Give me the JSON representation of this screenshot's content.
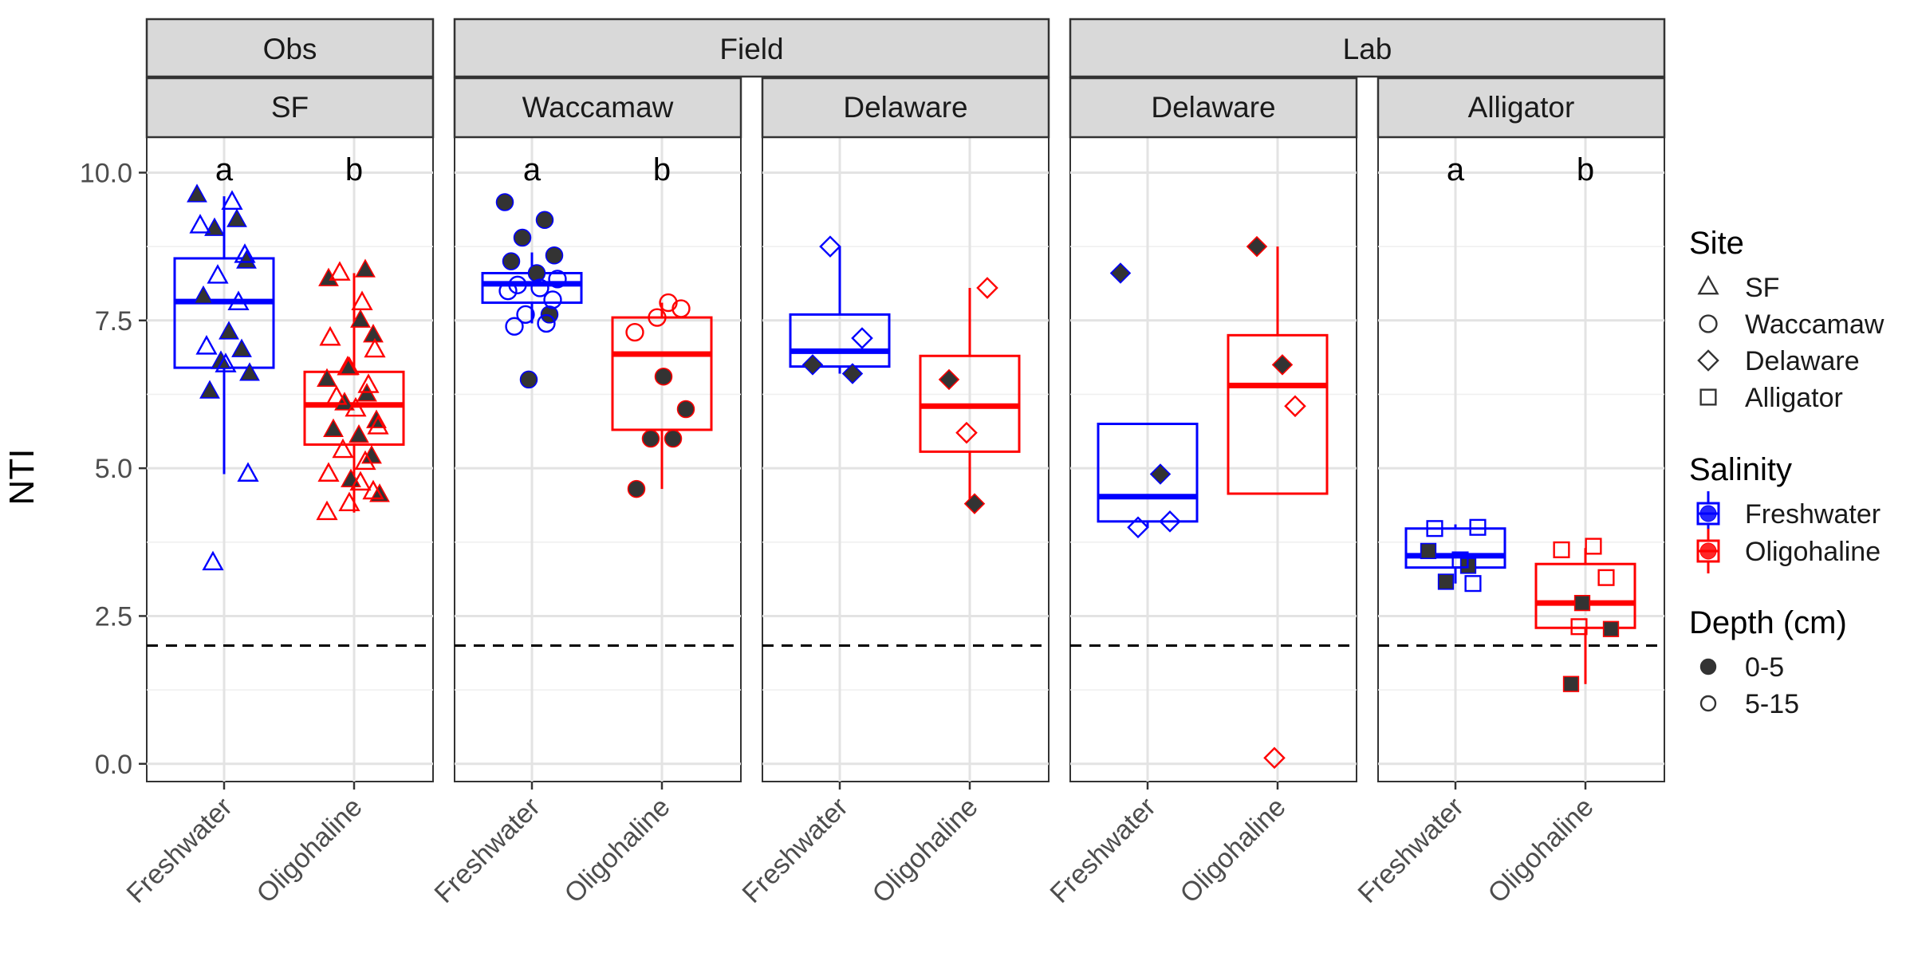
{
  "chart_data": {
    "type": "box",
    "ylabel": "NTI",
    "ylim": [
      -0.3,
      10.6
    ],
    "yticks": [
      0,
      2.5,
      5,
      7.5,
      10
    ],
    "ytick_labels": [
      "0.0",
      "2.5",
      "5.0",
      "7.5",
      "10.0"
    ],
    "reference_line": {
      "y": 2.0,
      "style": "dashed",
      "color": "#000000"
    },
    "categories": [
      "Freshwater",
      "Oligohaline"
    ],
    "colors": {
      "Freshwater": "#0000ff",
      "Oligohaline": "#ff0000"
    },
    "groups": [
      {
        "label": "Obs",
        "span": [
          0,
          0
        ]
      },
      {
        "label": "Field",
        "span": [
          1,
          2
        ]
      },
      {
        "label": "Lab",
        "span": [
          3,
          4
        ]
      }
    ],
    "panels": [
      {
        "label": "SF",
        "site_shape": "triangle",
        "annotations": [
          "a",
          "b"
        ],
        "boxes": [
          {
            "category": "Freshwater",
            "q1": 6.7,
            "median": 7.82,
            "q3": 8.55,
            "whisker_low": 4.9,
            "whisker_high": 9.6
          },
          {
            "category": "Oligohaline",
            "q1": 5.4,
            "median": 6.07,
            "q3": 6.63,
            "whisker_low": 4.25,
            "whisker_high": 8.3
          }
        ],
        "points": [
          {
            "category": "Freshwater",
            "value": 9.62,
            "depth": "0-5"
          },
          {
            "category": "Freshwater",
            "value": 9.2,
            "depth": "0-5"
          },
          {
            "category": "Freshwater",
            "value": 9.05,
            "depth": "0-5"
          },
          {
            "category": "Freshwater",
            "value": 8.5,
            "depth": "0-5"
          },
          {
            "category": "Freshwater",
            "value": 7.9,
            "depth": "0-5"
          },
          {
            "category": "Freshwater",
            "value": 7.3,
            "depth": "0-5"
          },
          {
            "category": "Freshwater",
            "value": 7.0,
            "depth": "0-5"
          },
          {
            "category": "Freshwater",
            "value": 6.8,
            "depth": "0-5"
          },
          {
            "category": "Freshwater",
            "value": 6.6,
            "depth": "0-5"
          },
          {
            "category": "Freshwater",
            "value": 6.3,
            "depth": "0-5"
          },
          {
            "category": "Freshwater",
            "value": 9.5,
            "depth": "5-15"
          },
          {
            "category": "Freshwater",
            "value": 9.1,
            "depth": "5-15"
          },
          {
            "category": "Freshwater",
            "value": 8.6,
            "depth": "5-15"
          },
          {
            "category": "Freshwater",
            "value": 8.25,
            "depth": "5-15"
          },
          {
            "category": "Freshwater",
            "value": 7.8,
            "depth": "5-15"
          },
          {
            "category": "Freshwater",
            "value": 7.05,
            "depth": "5-15"
          },
          {
            "category": "Freshwater",
            "value": 6.75,
            "depth": "5-15"
          },
          {
            "category": "Freshwater",
            "value": 4.9,
            "depth": "5-15"
          },
          {
            "category": "Freshwater",
            "value": 3.4,
            "depth": "5-15"
          },
          {
            "category": "Oligohaline",
            "value": 8.35,
            "depth": "0-5"
          },
          {
            "category": "Oligohaline",
            "value": 8.2,
            "depth": "0-5"
          },
          {
            "category": "Oligohaline",
            "value": 7.5,
            "depth": "0-5"
          },
          {
            "category": "Oligohaline",
            "value": 7.25,
            "depth": "0-5"
          },
          {
            "category": "Oligohaline",
            "value": 6.7,
            "depth": "0-5"
          },
          {
            "category": "Oligohaline",
            "value": 6.5,
            "depth": "0-5"
          },
          {
            "category": "Oligohaline",
            "value": 6.25,
            "depth": "0-5"
          },
          {
            "category": "Oligohaline",
            "value": 6.1,
            "depth": "0-5"
          },
          {
            "category": "Oligohaline",
            "value": 5.8,
            "depth": "0-5"
          },
          {
            "category": "Oligohaline",
            "value": 5.65,
            "depth": "0-5"
          },
          {
            "category": "Oligohaline",
            "value": 5.55,
            "depth": "0-5"
          },
          {
            "category": "Oligohaline",
            "value": 5.2,
            "depth": "0-5"
          },
          {
            "category": "Oligohaline",
            "value": 4.8,
            "depth": "0-5"
          },
          {
            "category": "Oligohaline",
            "value": 4.55,
            "depth": "0-5"
          },
          {
            "category": "Oligohaline",
            "value": 8.3,
            "depth": "5-15"
          },
          {
            "category": "Oligohaline",
            "value": 7.8,
            "depth": "5-15"
          },
          {
            "category": "Oligohaline",
            "value": 7.2,
            "depth": "5-15"
          },
          {
            "category": "Oligohaline",
            "value": 7.0,
            "depth": "5-15"
          },
          {
            "category": "Oligohaline",
            "value": 6.7,
            "depth": "5-15"
          },
          {
            "category": "Oligohaline",
            "value": 6.4,
            "depth": "5-15"
          },
          {
            "category": "Oligohaline",
            "value": 6.2,
            "depth": "5-15"
          },
          {
            "category": "Oligohaline",
            "value": 6.0,
            "depth": "5-15"
          },
          {
            "category": "Oligohaline",
            "value": 5.7,
            "depth": "5-15"
          },
          {
            "category": "Oligohaline",
            "value": 5.3,
            "depth": "5-15"
          },
          {
            "category": "Oligohaline",
            "value": 5.1,
            "depth": "5-15"
          },
          {
            "category": "Oligohaline",
            "value": 4.9,
            "depth": "5-15"
          },
          {
            "category": "Oligohaline",
            "value": 4.75,
            "depth": "5-15"
          },
          {
            "category": "Oligohaline",
            "value": 4.6,
            "depth": "5-15"
          },
          {
            "category": "Oligohaline",
            "value": 4.4,
            "depth": "5-15"
          },
          {
            "category": "Oligohaline",
            "value": 4.25,
            "depth": "5-15"
          }
        ]
      },
      {
        "label": "Waccamaw",
        "site_shape": "circle",
        "annotations": [
          "a",
          "b"
        ],
        "boxes": [
          {
            "category": "Freshwater",
            "q1": 7.8,
            "median": 8.12,
            "q3": 8.3,
            "whisker_low": 7.45,
            "whisker_high": 8.65
          },
          {
            "category": "Oligohaline",
            "q1": 5.65,
            "median": 6.93,
            "q3": 7.55,
            "whisker_low": 4.65,
            "whisker_high": 7.8
          }
        ],
        "points": [
          {
            "category": "Freshwater",
            "value": 9.5,
            "depth": "0-5"
          },
          {
            "category": "Freshwater",
            "value": 9.2,
            "depth": "0-5"
          },
          {
            "category": "Freshwater",
            "value": 8.9,
            "depth": "0-5"
          },
          {
            "category": "Freshwater",
            "value": 8.6,
            "depth": "0-5"
          },
          {
            "category": "Freshwater",
            "value": 8.5,
            "depth": "0-5"
          },
          {
            "category": "Freshwater",
            "value": 8.3,
            "depth": "0-5"
          },
          {
            "category": "Freshwater",
            "value": 7.6,
            "depth": "0-5"
          },
          {
            "category": "Freshwater",
            "value": 6.5,
            "depth": "0-5"
          },
          {
            "category": "Freshwater",
            "value": 8.2,
            "depth": "5-15"
          },
          {
            "category": "Freshwater",
            "value": 8.1,
            "depth": "5-15"
          },
          {
            "category": "Freshwater",
            "value": 8.05,
            "depth": "5-15"
          },
          {
            "category": "Freshwater",
            "value": 8.0,
            "depth": "5-15"
          },
          {
            "category": "Freshwater",
            "value": 7.85,
            "depth": "5-15"
          },
          {
            "category": "Freshwater",
            "value": 7.6,
            "depth": "5-15"
          },
          {
            "category": "Freshwater",
            "value": 7.45,
            "depth": "5-15"
          },
          {
            "category": "Freshwater",
            "value": 7.4,
            "depth": "5-15"
          },
          {
            "category": "Oligohaline",
            "value": 6.55,
            "depth": "0-5"
          },
          {
            "category": "Oligohaline",
            "value": 6.0,
            "depth": "0-5"
          },
          {
            "category": "Oligohaline",
            "value": 5.5,
            "depth": "0-5"
          },
          {
            "category": "Oligohaline",
            "value": 5.5,
            "depth": "0-5"
          },
          {
            "category": "Oligohaline",
            "value": 4.65,
            "depth": "0-5"
          },
          {
            "category": "Oligohaline",
            "value": 7.8,
            "depth": "5-15"
          },
          {
            "category": "Oligohaline",
            "value": 7.7,
            "depth": "5-15"
          },
          {
            "category": "Oligohaline",
            "value": 7.55,
            "depth": "5-15"
          },
          {
            "category": "Oligohaline",
            "value": 7.3,
            "depth": "5-15"
          }
        ]
      },
      {
        "label": "Delaware",
        "site_shape": "diamond",
        "annotations": [
          "",
          ""
        ],
        "boxes": [
          {
            "category": "Freshwater",
            "q1": 6.72,
            "median": 6.98,
            "q3": 7.6,
            "whisker_low": 6.6,
            "whisker_high": 8.75
          },
          {
            "category": "Oligohaline",
            "q1": 5.28,
            "median": 6.05,
            "q3": 6.9,
            "whisker_low": 4.4,
            "whisker_high": 8.05
          }
        ],
        "points": [
          {
            "category": "Freshwater",
            "value": 6.75,
            "depth": "0-5"
          },
          {
            "category": "Freshwater",
            "value": 6.6,
            "depth": "0-5"
          },
          {
            "category": "Freshwater",
            "value": 8.75,
            "depth": "5-15"
          },
          {
            "category": "Freshwater",
            "value": 7.2,
            "depth": "5-15"
          },
          {
            "category": "Oligohaline",
            "value": 6.5,
            "depth": "0-5"
          },
          {
            "category": "Oligohaline",
            "value": 4.4,
            "depth": "0-5"
          },
          {
            "category": "Oligohaline",
            "value": 8.05,
            "depth": "5-15"
          },
          {
            "category": "Oligohaline",
            "value": 5.6,
            "depth": "5-15"
          }
        ]
      },
      {
        "label": "Delaware",
        "site_shape": "diamond",
        "annotations": [
          "",
          ""
        ],
        "boxes": [
          {
            "category": "Freshwater",
            "q1": 4.1,
            "median": 4.52,
            "q3": 5.75,
            "whisker_low": 4.0,
            "whisker_high": 5.75
          },
          {
            "category": "Oligohaline",
            "q1": 4.57,
            "median": 6.4,
            "q3": 7.25,
            "whisker_low": 4.57,
            "whisker_high": 8.75
          }
        ],
        "points": [
          {
            "category": "Freshwater",
            "value": 8.3,
            "depth": "0-5"
          },
          {
            "category": "Freshwater",
            "value": 4.9,
            "depth": "0-5"
          },
          {
            "category": "Freshwater",
            "value": 4.0,
            "depth": "5-15"
          },
          {
            "category": "Freshwater",
            "value": 4.1,
            "depth": "5-15"
          },
          {
            "category": "Oligohaline",
            "value": 8.75,
            "depth": "0-5"
          },
          {
            "category": "Oligohaline",
            "value": 6.75,
            "depth": "0-5"
          },
          {
            "category": "Oligohaline",
            "value": 6.05,
            "depth": "5-15"
          },
          {
            "category": "Oligohaline",
            "value": 0.1,
            "depth": "5-15"
          }
        ]
      },
      {
        "label": "Alligator",
        "site_shape": "square",
        "annotations": [
          "a",
          "b"
        ],
        "boxes": [
          {
            "category": "Freshwater",
            "q1": 3.32,
            "median": 3.52,
            "q3": 3.98,
            "whisker_low": 3.05,
            "whisker_high": 4.05
          },
          {
            "category": "Oligohaline",
            "q1": 2.3,
            "median": 2.72,
            "q3": 3.38,
            "whisker_low": 1.35,
            "whisker_high": 3.65
          }
        ],
        "points": [
          {
            "category": "Freshwater",
            "value": 3.6,
            "depth": "0-5"
          },
          {
            "category": "Freshwater",
            "value": 3.35,
            "depth": "0-5"
          },
          {
            "category": "Freshwater",
            "value": 3.08,
            "depth": "0-5"
          },
          {
            "category": "Freshwater",
            "value": 4.0,
            "depth": "5-15"
          },
          {
            "category": "Freshwater",
            "value": 3.98,
            "depth": "5-15"
          },
          {
            "category": "Freshwater",
            "value": 3.45,
            "depth": "5-15"
          },
          {
            "category": "Freshwater",
            "value": 3.05,
            "depth": "5-15"
          },
          {
            "category": "Oligohaline",
            "value": 2.72,
            "depth": "0-5"
          },
          {
            "category": "Oligohaline",
            "value": 2.28,
            "depth": "0-5"
          },
          {
            "category": "Oligohaline",
            "value": 1.35,
            "depth": "0-5"
          },
          {
            "category": "Oligohaline",
            "value": 3.68,
            "depth": "5-15"
          },
          {
            "category": "Oligohaline",
            "value": 3.62,
            "depth": "5-15"
          },
          {
            "category": "Oligohaline",
            "value": 3.15,
            "depth": "5-15"
          },
          {
            "category": "Oligohaline",
            "value": 2.32,
            "depth": "5-15"
          }
        ]
      }
    ],
    "legend": {
      "position": "right",
      "sections": [
        {
          "title": "Site",
          "items": [
            {
              "label": "SF",
              "shape": "triangle"
            },
            {
              "label": "Waccamaw",
              "shape": "circle"
            },
            {
              "label": "Delaware",
              "shape": "diamond"
            },
            {
              "label": "Alligator",
              "shape": "square"
            }
          ]
        },
        {
          "title": "Salinity",
          "items": [
            {
              "label": "Freshwater",
              "color": "#0000ff"
            },
            {
              "label": "Oligohaline",
              "color": "#ff0000"
            }
          ]
        },
        {
          "title": "Depth (cm)",
          "items": [
            {
              "label": "0-5",
              "fill": "#333333"
            },
            {
              "label": "5-15",
              "fill": "none"
            }
          ]
        }
      ]
    }
  }
}
